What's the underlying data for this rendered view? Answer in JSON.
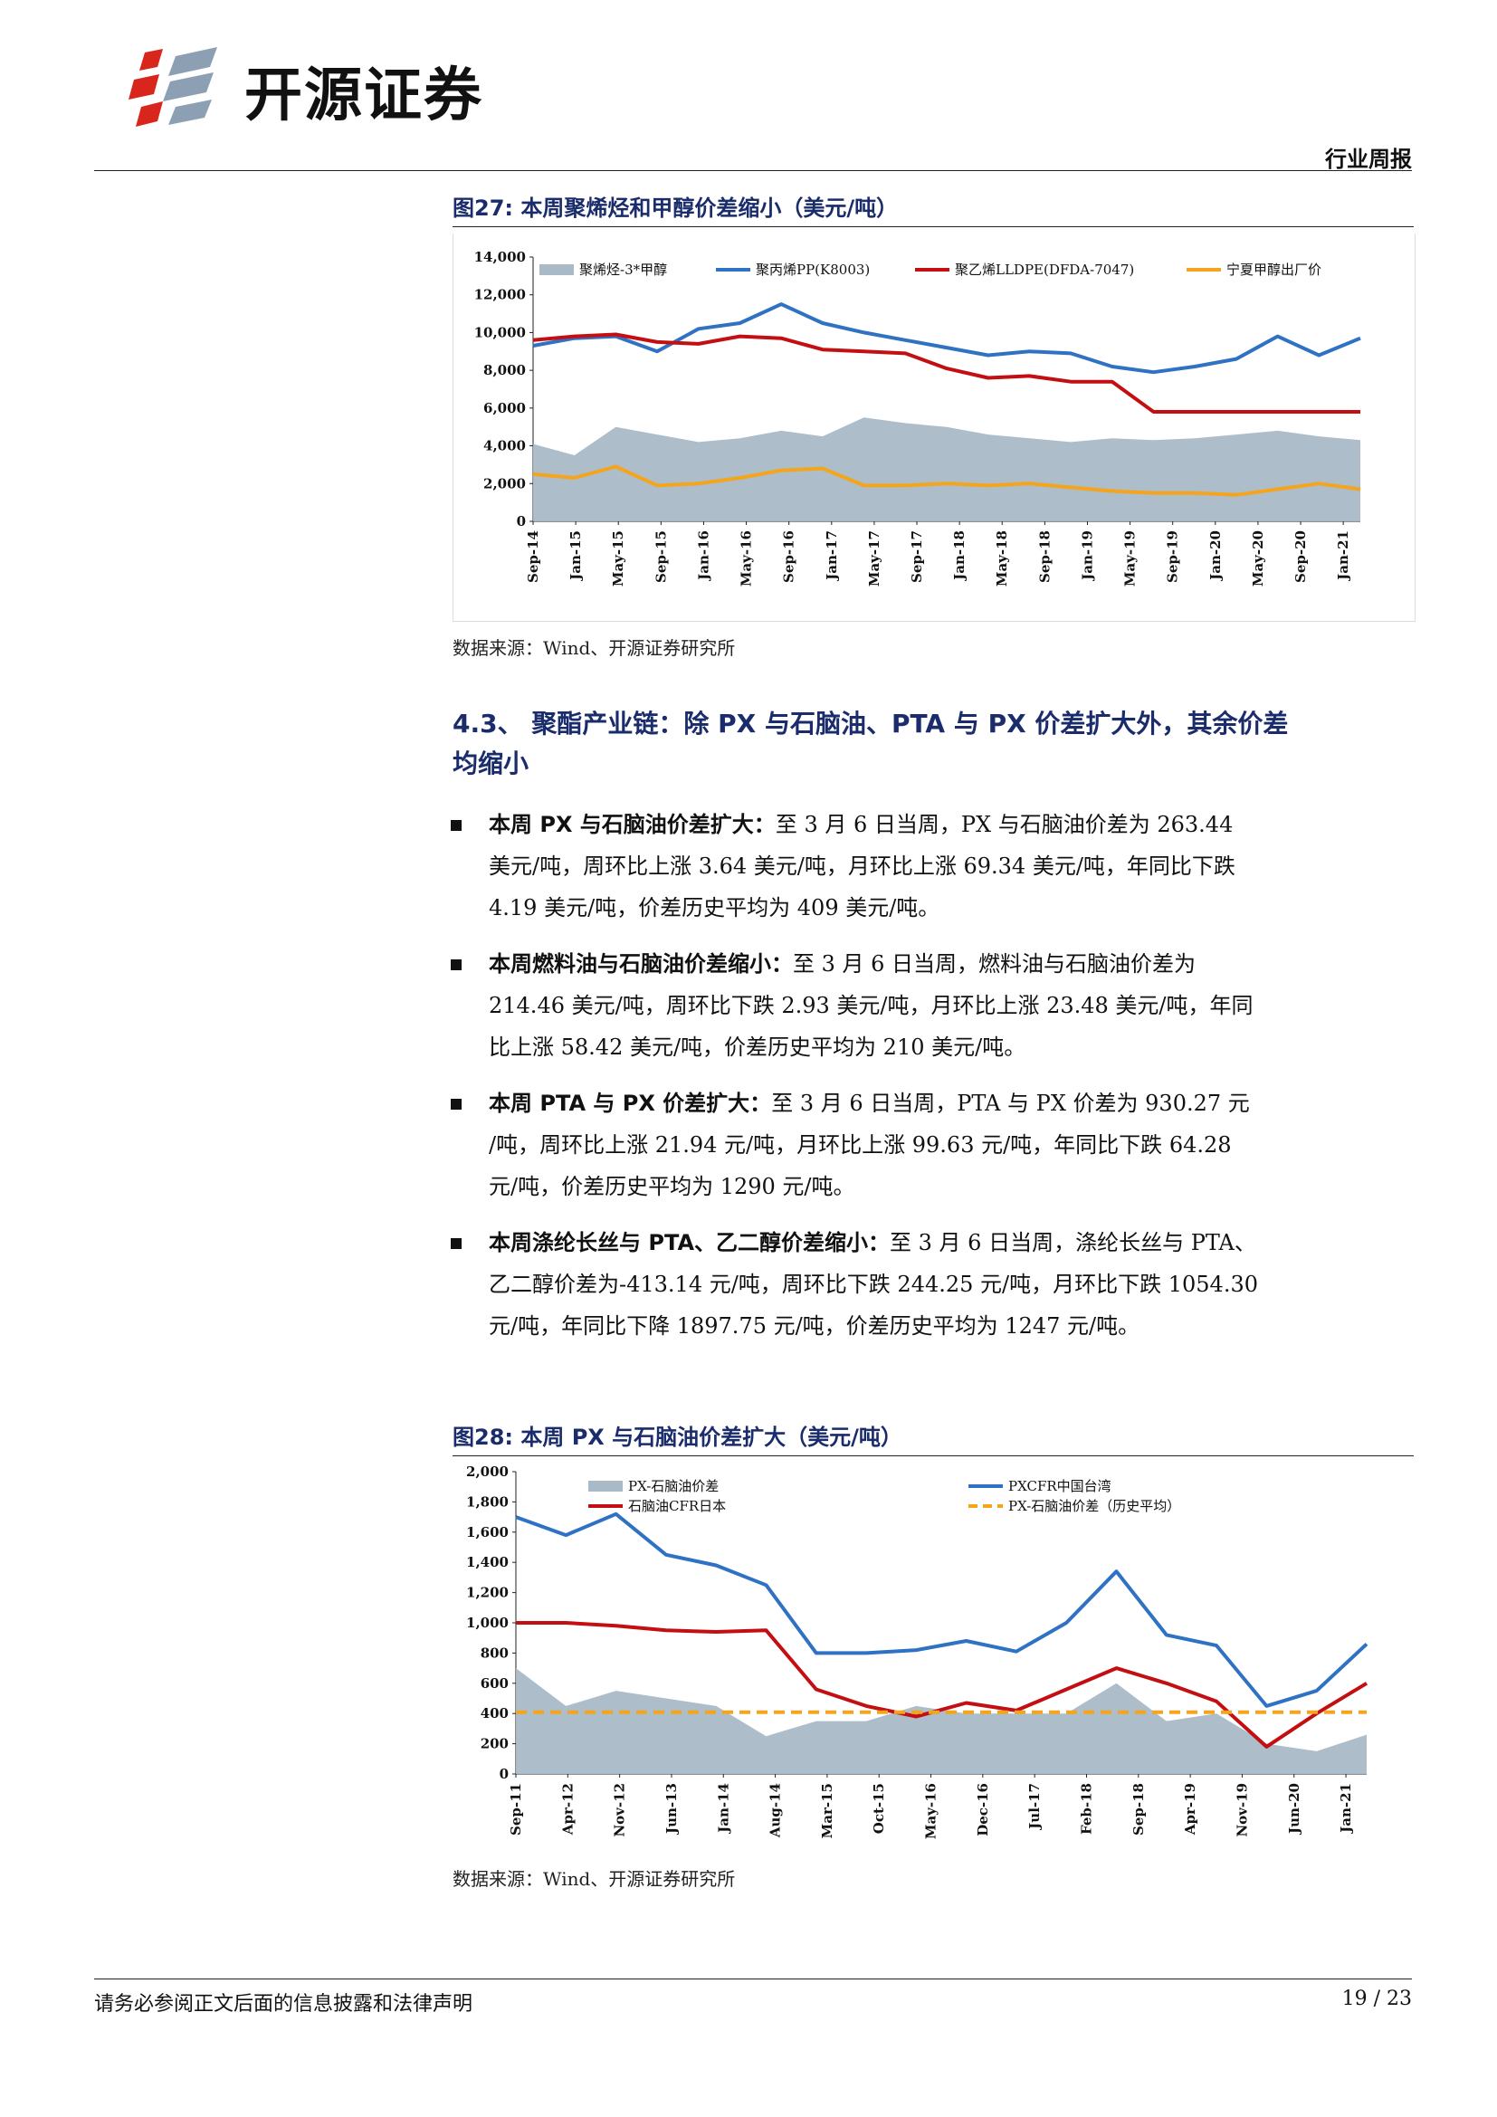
{
  "header": {
    "logo_text": "开源证券",
    "report_type": "行业周报"
  },
  "figure27": {
    "title": "图27:  本周聚烯烃和甲醇价差缩小（美元/吨）",
    "source": "数据来源：Wind、开源证券研究所",
    "legend": {
      "bar": "聚烯烃-3*甲醇",
      "pp": "聚丙烯PP(K8003)",
      "lldpe": "聚乙烯LLDPE(DFDA-7047)",
      "methanol": "宁夏甲醇出厂价"
    },
    "colors": {
      "bar": "#a9b9c6",
      "pp": "#2f72c4",
      "lldpe": "#c40f12",
      "methanol": "#f4a51d"
    }
  },
  "section": {
    "title_line1": "4.3、 聚酯产业链：除 PX 与石脑油、PTA 与 PX 价差扩大外，其余价差",
    "title_line2": "均缩小"
  },
  "bullets": [
    {
      "head": "本周 PX 与石脑油价差扩大：",
      "lines": [
        "至 3 月 6 日当周，PX 与石脑油价差为 263.44",
        "美元/吨，周环比上涨 3.64 美元/吨，月环比上涨 69.34 美元/吨，年同比下跌",
        "4.19 美元/吨，价差历史平均为 409 美元/吨。"
      ]
    },
    {
      "head": "本周燃料油与石脑油价差缩小：",
      "lines": [
        "至 3 月 6 日当周，燃料油与石脑油价差为",
        "214.46 美元/吨，周环比下跌 2.93 美元/吨，月环比上涨 23.48 美元/吨，年同",
        "比上涨 58.42 美元/吨，价差历史平均为 210 美元/吨。"
      ]
    },
    {
      "head": "本周 PTA 与 PX 价差扩大：",
      "lines": [
        "至 3 月 6 日当周，PTA 与 PX 价差为 930.27 元",
        "/吨，周环比上涨 21.94 元/吨，月环比上涨 99.63 元/吨，年同比下跌 64.28",
        "元/吨，价差历史平均为 1290 元/吨。"
      ]
    },
    {
      "head": "本周涤纶长丝与 PTA、乙二醇价差缩小：",
      "lines": [
        "至 3 月 6 日当周，涤纶长丝与 PTA、",
        "乙二醇价差为-413.14 元/吨，周环比下跌 244.25 元/吨，月环比下跌 1054.30",
        "元/吨，年同比下降 1897.75 元/吨，价差历史平均为 1247 元/吨。"
      ]
    }
  ],
  "figure28": {
    "title": "图28:  本周 PX 与石脑油价差扩大（美元/吨）",
    "source": "数据来源：Wind、开源证券研究所",
    "legend": {
      "bar": "PX-石脑油价差",
      "naphtha": "石脑油CFR日本",
      "px": "PXCFR中国台湾",
      "avg": "PX-石脑油价差（历史平均）"
    },
    "colors": {
      "bar": "#a9b9c6",
      "px": "#2f72c4",
      "naphtha": "#c40f12",
      "avg": "#f4a51d"
    }
  },
  "footer": {
    "disclaimer": "请务必参阅正文后面的信息披露和法律声明",
    "page": "19 / 23"
  },
  "chart_data": [
    {
      "type": "line",
      "title": "本周聚烯烃和甲醇价差缩小（美元/吨）",
      "ylim": [
        0,
        14000
      ],
      "yticks": [
        "14,000",
        "12,000",
        "10,000",
        "8,000",
        "6,000",
        "4,000",
        "2,000",
        "0"
      ],
      "x_ticks": [
        "Sep-14",
        "Jan-15",
        "May-15",
        "Sep-15",
        "Jan-16",
        "May-16",
        "Sep-16",
        "Jan-17",
        "May-17",
        "Sep-17",
        "Jan-18",
        "May-18",
        "Sep-18",
        "Jan-19",
        "May-19",
        "Sep-19",
        "Jan-20",
        "May-20",
        "Sep-20",
        "Jan-21"
      ],
      "x": [
        "Sep-14",
        "Jan-15",
        "May-15",
        "Sep-15",
        "Jan-16",
        "May-16",
        "Sep-16",
        "Jan-17",
        "May-17",
        "Sep-17",
        "Jan-18",
        "May-18",
        "Sep-18",
        "Jan-19",
        "May-19",
        "Sep-19",
        "Jan-20",
        "May-20",
        "Sep-20",
        "Jan-21",
        "Mar-21"
      ],
      "series": [
        {
          "name": "聚烯烃-3*甲醇",
          "kind": "area",
          "values": [
            4100,
            3500,
            5000,
            4600,
            4200,
            4400,
            4800,
            4500,
            5500,
            5200,
            5000,
            4600,
            4400,
            4200,
            4400,
            4300,
            4400,
            4600,
            4800,
            4500,
            4300
          ]
        },
        {
          "name": "聚丙烯PP(K8003)",
          "kind": "line",
          "values": [
            9300,
            9700,
            9800,
            9000,
            10200,
            10500,
            11500,
            10500,
            10000,
            9600,
            9200,
            8800,
            9000,
            8900,
            8200,
            7900,
            8200,
            8600,
            9800,
            8800,
            9700
          ]
        },
        {
          "name": "聚乙烯LLDPE(DFDA-7047)",
          "kind": "line",
          "values": [
            9600,
            9800,
            9900,
            9500,
            9400,
            9800,
            9700,
            9100,
            9000,
            8900,
            8100,
            7600,
            7700,
            7400,
            7400,
            5800,
            5800,
            5800,
            5800,
            5800,
            5800
          ]
        },
        {
          "name": "宁夏甲醇出厂价",
          "kind": "line",
          "values": [
            2500,
            2300,
            2900,
            1900,
            2000,
            2300,
            2700,
            2800,
            1900,
            1900,
            2000,
            1900,
            2000,
            1800,
            1600,
            1500,
            1500,
            1400,
            1700,
            2000,
            1700
          ]
        }
      ],
      "grid": false,
      "legend": "top"
    },
    {
      "type": "line",
      "title": "本周 PX 与石脑油价差扩大（美元/吨）",
      "ylim": [
        0,
        2000
      ],
      "yticks": [
        "2,000",
        "1,800",
        "1,600",
        "1,400",
        "1,200",
        "1,000",
        "800",
        "600",
        "400",
        "200",
        "0"
      ],
      "x_ticks": [
        "Sep-11",
        "Apr-12",
        "Nov-12",
        "Jun-13",
        "Jan-14",
        "Aug-14",
        "Mar-15",
        "Oct-15",
        "May-16",
        "Dec-16",
        "Jul-17",
        "Feb-18",
        "Sep-18",
        "Apr-19",
        "Nov-19",
        "Jun-20",
        "Jan-21"
      ],
      "x": [
        "Sep-11",
        "Apr-12",
        "Nov-12",
        "Jun-13",
        "Jan-14",
        "Aug-14",
        "Mar-15",
        "Oct-15",
        "May-16",
        "Dec-16",
        "Jul-17",
        "Feb-18",
        "Sep-18",
        "Apr-19",
        "Nov-19",
        "Jun-20",
        "Jan-21",
        "Mar-21"
      ],
      "series": [
        {
          "name": "PX-石脑油价差",
          "kind": "area",
          "values": [
            700,
            450,
            550,
            500,
            450,
            250,
            350,
            350,
            450,
            400,
            400,
            400,
            600,
            350,
            400,
            200,
            150,
            260
          ]
        },
        {
          "name": "PXCFR中国台湾",
          "kind": "line",
          "values": [
            1700,
            1580,
            1720,
            1450,
            1380,
            1250,
            800,
            800,
            820,
            880,
            810,
            1000,
            1340,
            920,
            850,
            450,
            550,
            860
          ]
        },
        {
          "name": "石脑油CFR日本",
          "kind": "line",
          "values": [
            1000,
            1000,
            980,
            950,
            940,
            950,
            560,
            450,
            380,
            470,
            420,
            560,
            700,
            600,
            480,
            180,
            400,
            600
          ]
        },
        {
          "name": "PX-石脑油价差（历史平均）",
          "kind": "dashed",
          "values": [
            409,
            409,
            409,
            409,
            409,
            409,
            409,
            409,
            409,
            409,
            409,
            409,
            409,
            409,
            409,
            409,
            409,
            409
          ]
        }
      ],
      "grid": false,
      "legend": "top"
    }
  ]
}
